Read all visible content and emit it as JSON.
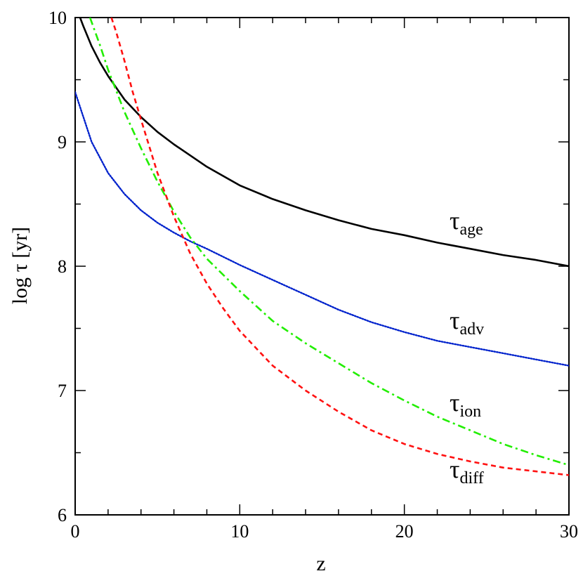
{
  "chart_data": {
    "type": "line",
    "title": "",
    "xlabel": "z",
    "ylabel": "log τ [yr]",
    "xlim": [
      0,
      30
    ],
    "ylim": [
      6,
      10
    ],
    "x_ticks": [
      0,
      10,
      20,
      30
    ],
    "y_ticks": [
      6,
      7,
      8,
      9,
      10
    ],
    "x_tick_labels": [
      "0",
      "10",
      "20",
      "30"
    ],
    "y_tick_labels": [
      "6",
      "7",
      "8",
      "9",
      "10"
    ],
    "grid": false,
    "series": [
      {
        "name": "age",
        "symbol": "τ",
        "subscript": "age",
        "color": "#000000",
        "style": "solid",
        "x": [
          0.3,
          0.5,
          1,
          1.5,
          2,
          3,
          4,
          5,
          6,
          8,
          10,
          12,
          14,
          16,
          18,
          20,
          22,
          24,
          26,
          28,
          30
        ],
        "y": [
          10.0,
          9.93,
          9.77,
          9.64,
          9.53,
          9.34,
          9.2,
          9.08,
          8.98,
          8.8,
          8.65,
          8.54,
          8.45,
          8.37,
          8.3,
          8.25,
          8.19,
          8.14,
          8.09,
          8.05,
          8.0
        ]
      },
      {
        "name": "adv",
        "symbol": "τ",
        "subscript": "adv",
        "color": "#0022cc",
        "style": "dotted",
        "x": [
          0,
          0.5,
          1,
          2,
          3,
          4,
          5,
          6,
          7,
          8,
          10,
          12,
          14,
          16,
          18,
          20,
          22,
          24,
          26,
          28,
          30
        ],
        "y": [
          9.4,
          9.2,
          9.0,
          8.75,
          8.58,
          8.45,
          8.35,
          8.27,
          8.2,
          8.14,
          8.01,
          7.89,
          7.77,
          7.65,
          7.55,
          7.47,
          7.4,
          7.35,
          7.3,
          7.25,
          7.2
        ]
      },
      {
        "name": "ion",
        "symbol": "τ",
        "subscript": "ion",
        "color": "#22ee00",
        "style": "dashdot",
        "x": [
          0.9,
          1.5,
          2,
          3,
          4,
          5,
          6,
          7,
          8,
          10,
          12,
          14,
          16,
          18,
          20,
          22,
          24,
          26,
          28,
          30
        ],
        "y": [
          10.0,
          9.78,
          9.58,
          9.24,
          8.95,
          8.68,
          8.44,
          8.23,
          8.06,
          7.8,
          7.56,
          7.38,
          7.22,
          7.06,
          6.92,
          6.79,
          6.68,
          6.57,
          6.48,
          6.4
        ]
      },
      {
        "name": "diff",
        "symbol": "τ",
        "subscript": "diff",
        "color": "#ff1111",
        "style": "dashed",
        "x": [
          2.2,
          2.5,
          3,
          3.5,
          4,
          5,
          6,
          7,
          8,
          9,
          10,
          12,
          14,
          16,
          18,
          20,
          22,
          24,
          26,
          28,
          30
        ],
        "y": [
          10.0,
          9.88,
          9.65,
          9.4,
          9.18,
          8.75,
          8.4,
          8.1,
          7.86,
          7.66,
          7.48,
          7.2,
          7.0,
          6.83,
          6.68,
          6.57,
          6.49,
          6.43,
          6.38,
          6.35,
          6.32
        ]
      }
    ]
  }
}
